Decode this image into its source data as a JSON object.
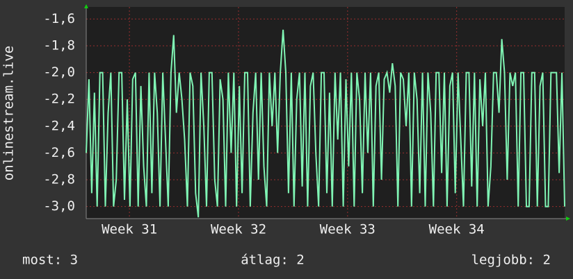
{
  "chart_data": {
    "type": "line",
    "y_label": "onlinestream.live",
    "ylim": [
      -3.09,
      -1.51
    ],
    "yticks": [
      {
        "value": -1.6,
        "label": "-1,6"
      },
      {
        "value": -1.8,
        "label": "-1,8"
      },
      {
        "value": -2.0,
        "label": "-2,0"
      },
      {
        "value": -2.2,
        "label": "-2,2"
      },
      {
        "value": -2.4,
        "label": "-2,4"
      },
      {
        "value": -2.6,
        "label": "-2,6"
      },
      {
        "value": -2.8,
        "label": "-2,8"
      },
      {
        "value": -3.0,
        "label": "-3,0"
      }
    ],
    "xlim": [
      0,
      175
    ],
    "xticks": [
      {
        "value": 15.8,
        "label": "Week 31"
      },
      {
        "value": 55.7,
        "label": "Week 32"
      },
      {
        "value": 95.6,
        "label": "Week 33"
      },
      {
        "value": 135.5,
        "label": "Week 34"
      }
    ],
    "grid": true,
    "series": [
      {
        "color": "#80f5b4",
        "values": [
          -2.6,
          -2.05,
          -2.9,
          -2.15,
          -3.0,
          -2.0,
          -2.0,
          -3.0,
          -2.3,
          -2.0,
          -3.0,
          -2.8,
          -2.0,
          -2.0,
          -2.95,
          -2.2,
          -3.0,
          -2.05,
          -2.0,
          -3.0,
          -2.1,
          -2.7,
          -3.0,
          -2.0,
          -2.9,
          -2.0,
          -2.3,
          -3.0,
          -2.0,
          -2.5,
          -3.0,
          -2.0,
          -1.72,
          -2.3,
          -2.0,
          -2.2,
          -2.5,
          -3.0,
          -2.0,
          -2.1,
          -2.9,
          -3.08,
          -2.0,
          -2.4,
          -3.0,
          -2.0,
          -2.0,
          -2.8,
          -3.0,
          -2.05,
          -2.2,
          -3.0,
          -2.0,
          -2.6,
          -2.0,
          -3.0,
          -2.1,
          -2.9,
          -2.0,
          -2.0,
          -3.0,
          -2.3,
          -2.0,
          -2.8,
          -2.0,
          -2.7,
          -3.0,
          -2.0,
          -2.4,
          -2.0,
          -2.6,
          -2.0,
          -1.68,
          -2.0,
          -2.9,
          -2.0,
          -3.0,
          -2.2,
          -2.0,
          -2.85,
          -2.0,
          -3.0,
          -2.1,
          -2.0,
          -2.6,
          -3.0,
          -2.0,
          -2.0,
          -2.9,
          -2.15,
          -3.0,
          -2.0,
          -2.5,
          -2.0,
          -3.0,
          -2.05,
          -2.7,
          -2.0,
          -3.0,
          -2.0,
          -2.2,
          -2.9,
          -2.0,
          -2.6,
          -2.0,
          -3.0,
          -2.1,
          -2.0,
          -2.8,
          -2.05,
          -2.0,
          -2.15,
          -1.93,
          -2.1,
          -3.0,
          -2.0,
          -2.05,
          -2.4,
          -2.0,
          -3.0,
          -2.0,
          -2.2,
          -2.9,
          -2.0,
          -3.0,
          -2.0,
          -2.3,
          -3.0,
          -2.0,
          -2.0,
          -2.75,
          -2.0,
          -3.0,
          -2.1,
          -2.0,
          -2.9,
          -2.0,
          -2.5,
          -3.0,
          -2.0,
          -2.0,
          -2.85,
          -2.0,
          -3.0,
          -2.05,
          -2.4,
          -2.0,
          -3.0,
          -2.7,
          -2.0,
          -2.0,
          -2.3,
          -1.75,
          -2.0,
          -2.8,
          -2.0,
          -2.1,
          -2.0,
          -3.0,
          -2.0,
          -2.0,
          -3.0,
          -3.0,
          -2.0,
          -2.0,
          -3.0,
          -2.1,
          -2.0,
          -3.0,
          -3.0,
          -2.0,
          -2.0,
          -2.0,
          -2.75,
          -2.0,
          -3.0
        ]
      }
    ],
    "footer": [
      "most: 3",
      "átlag: 2",
      "legjobb: 2"
    ]
  }
}
